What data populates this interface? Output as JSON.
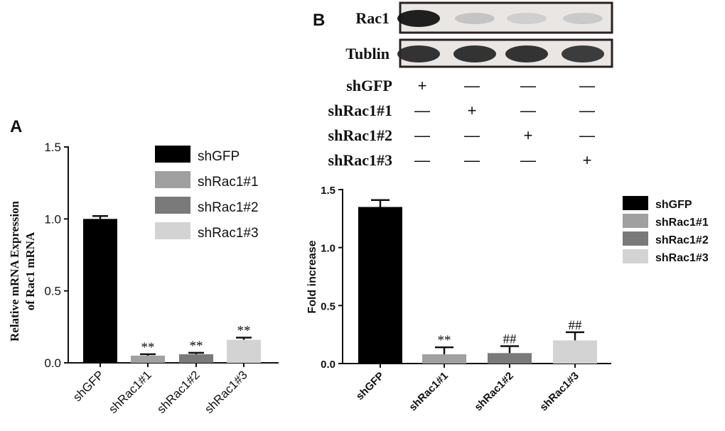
{
  "chart_data": [
    {
      "panel": "A",
      "type": "bar",
      "ylabel_lines": [
        "Relative mRNA Expression",
        "of Rac1 mRNA"
      ],
      "categories": [
        "shGFP",
        "shRac1#1",
        "shRac1#2",
        "shRac1#3"
      ],
      "values": [
        1.0,
        0.05,
        0.06,
        0.16
      ],
      "errors": [
        0.02,
        0.01,
        0.01,
        0.015
      ],
      "significance": [
        "",
        "**",
        "**",
        "**"
      ],
      "colors": [
        "#000000",
        "#a0a0a0",
        "#7a7a7a",
        "#d3d3d3"
      ],
      "yticks": [
        "0.0",
        "0.5",
        "1.0",
        "1.5"
      ],
      "ylim": [
        0,
        1.5
      ],
      "legend": [
        "shGFP",
        "shRac1#1",
        "shRac1#2",
        "shRac1#3"
      ],
      "legend_position": "top-right",
      "grid": false
    },
    {
      "panel": "B",
      "type": "bar",
      "ylabel": "Fold increase",
      "categories": [
        "shGFP",
        "shRac1#1",
        "shRac1#2",
        "shRac1#3"
      ],
      "values": [
        1.35,
        0.08,
        0.09,
        0.2
      ],
      "errors": [
        0.06,
        0.06,
        0.06,
        0.07
      ],
      "significance": [
        "",
        "**",
        "##",
        "##"
      ],
      "colors": [
        "#000000",
        "#a0a0a0",
        "#7a7a7a",
        "#d3d3d3"
      ],
      "yticks": [
        "0.0",
        "0.5",
        "1.0",
        "1.5"
      ],
      "ylim": [
        0,
        1.5
      ],
      "legend": [
        "shGFP",
        "shRac1#1",
        "shRac1#2",
        "shRac1#3"
      ],
      "legend_position": "right",
      "grid": false
    }
  ],
  "panel_labels": {
    "a": "A",
    "b": "B"
  },
  "western_blot": {
    "bands": [
      {
        "label": "Rac1",
        "intensities": [
          1.0,
          0.15,
          0.1,
          0.12
        ]
      },
      {
        "label": "Tublin",
        "intensities": [
          0.9,
          0.9,
          0.9,
          0.85
        ]
      }
    ],
    "conditions": [
      {
        "label": "shGFP",
        "marks": [
          "+",
          "—",
          "—",
          "—"
        ]
      },
      {
        "label": "shRac1#1",
        "marks": [
          "—",
          "+",
          "—",
          "—"
        ]
      },
      {
        "label": "shRac1#2",
        "marks": [
          "—",
          "—",
          "+",
          "—"
        ]
      },
      {
        "label": "shRac1#3",
        "marks": [
          "—",
          "—",
          "—",
          "+"
        ]
      }
    ]
  }
}
